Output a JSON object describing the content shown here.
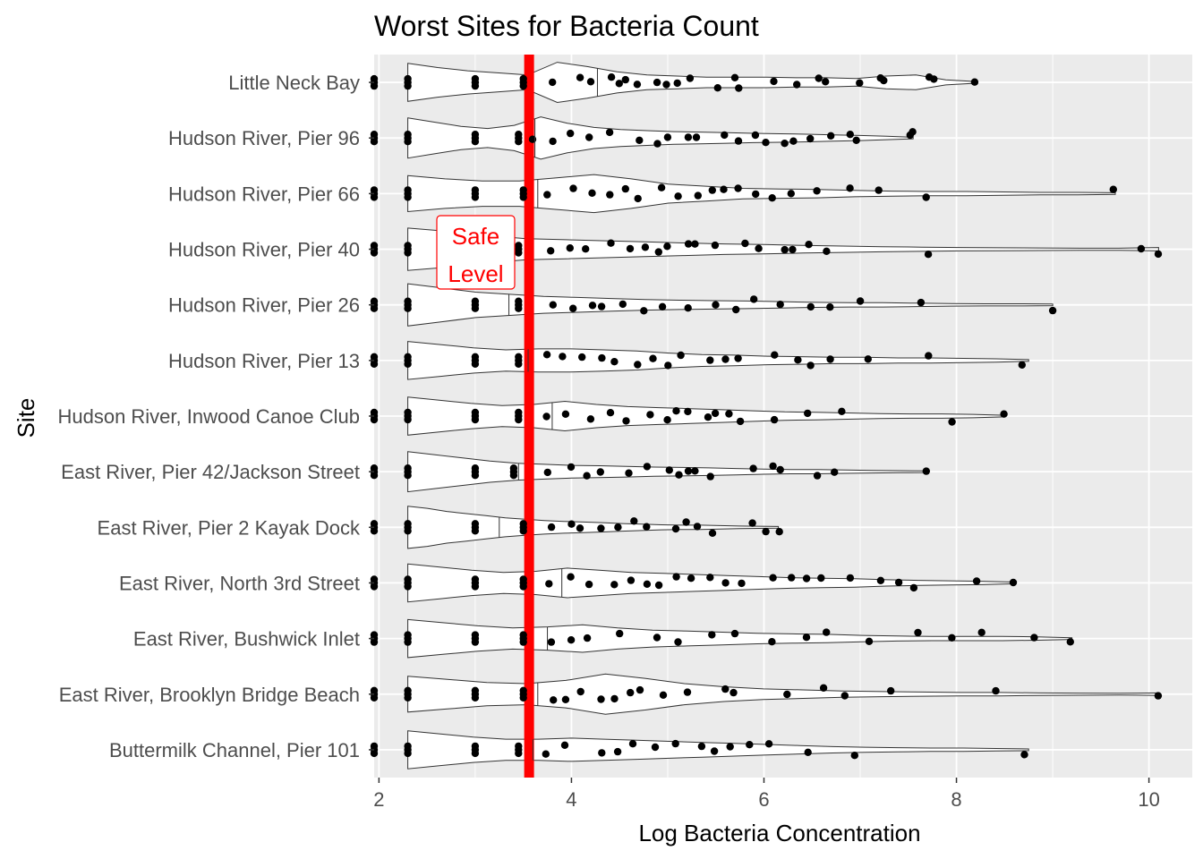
{
  "chart_data": {
    "type": "violin",
    "title": "Worst Sites for Bacteria Count",
    "xlabel": "Log Bacteria Concentration",
    "ylabel": "Site",
    "xlim": [
      1.95,
      10.45
    ],
    "x_ticks": [
      2,
      4,
      6,
      8,
      10
    ],
    "grid": true,
    "background": "#ebebeb",
    "reference_line": {
      "x": 3.56,
      "color": "#ff0000",
      "label_lines": [
        "Safe",
        "Level"
      ]
    },
    "sites": [
      {
        "name": "Little Neck Bay",
        "min": 2.3,
        "max": 8.2,
        "median": 4.27,
        "widths": [
          0.9,
          0.7,
          0.55,
          0.45,
          0.35,
          0.95,
          0.75,
          0.5,
          0.35,
          0.3,
          0.25,
          0.25,
          0.25,
          0.22,
          0.22,
          0.18,
          0.3,
          0.35,
          0.12,
          0.04
        ],
        "points": [
          1.95,
          2.3,
          3.0,
          3.5,
          3.8,
          4.1,
          4.2,
          4.4,
          4.5,
          4.55,
          4.7,
          4.9,
          5.0,
          5.1,
          5.25,
          5.5,
          5.7,
          5.75,
          6.1,
          6.35,
          6.55,
          6.65,
          7.0,
          7.2,
          7.25,
          7.7,
          7.75,
          8.2
        ]
      },
      {
        "name": "Hudson River, Pier 96",
        "min": 2.3,
        "max": 7.55,
        "median": 3.62,
        "widths": [
          0.95,
          0.75,
          0.55,
          0.45,
          0.6,
          1.0,
          0.7,
          0.5,
          0.4,
          0.35,
          0.3,
          0.28,
          0.25,
          0.22,
          0.2,
          0.18,
          0.15,
          0.12,
          0.08,
          0.04
        ],
        "points": [
          1.95,
          2.3,
          3.0,
          3.45,
          3.6,
          3.8,
          4.0,
          4.2,
          4.4,
          4.7,
          4.9,
          5.0,
          5.2,
          5.3,
          5.6,
          5.75,
          5.9,
          6.0,
          6.2,
          6.3,
          6.5,
          6.7,
          6.9,
          6.95,
          7.5,
          7.55
        ]
      },
      {
        "name": "Hudson River, Pier 66",
        "min": 2.3,
        "max": 9.65,
        "median": 3.65,
        "widths": [
          0.85,
          0.7,
          0.6,
          0.6,
          0.75,
          0.9,
          0.7,
          0.45,
          0.35,
          0.25,
          0.22,
          0.2,
          0.15,
          0.12,
          0.1,
          0.1,
          0.08,
          0.06,
          0.06,
          0.04
        ],
        "points": [
          1.95,
          2.3,
          3.0,
          3.5,
          3.75,
          4.0,
          4.2,
          4.4,
          4.55,
          4.7,
          4.95,
          5.1,
          5.3,
          5.45,
          5.6,
          5.75,
          5.9,
          6.1,
          6.3,
          6.55,
          6.9,
          7.2,
          7.7,
          9.65
        ]
      },
      {
        "name": "Hudson River, Pier 40",
        "min": 2.3,
        "max": 10.1,
        "median": 3.3,
        "widths": [
          1.0,
          0.85,
          0.65,
          0.5,
          0.45,
          0.4,
          0.35,
          0.3,
          0.25,
          0.22,
          0.18,
          0.15,
          0.12,
          0.1,
          0.08,
          0.07,
          0.06,
          0.05,
          0.05,
          0.08
        ],
        "points": [
          1.95,
          2.3,
          3.0,
          3.45,
          3.8,
          4.0,
          4.15,
          4.4,
          4.6,
          4.75,
          4.9,
          5.0,
          5.2,
          5.3,
          5.5,
          5.8,
          5.95,
          6.2,
          6.3,
          6.45,
          6.65,
          7.7,
          9.9,
          10.1
        ]
      },
      {
        "name": "Hudson River, Pier 26",
        "min": 2.3,
        "max": 9.0,
        "median": 3.35,
        "widths": [
          1.0,
          0.8,
          0.6,
          0.5,
          0.4,
          0.35,
          0.3,
          0.25,
          0.22,
          0.2,
          0.18,
          0.15,
          0.12,
          0.1,
          0.1,
          0.08,
          0.06,
          0.05,
          0.05,
          0.04
        ],
        "points": [
          1.95,
          2.3,
          3.0,
          3.45,
          3.8,
          4.0,
          4.2,
          4.3,
          4.55,
          4.75,
          4.95,
          5.2,
          5.5,
          5.7,
          5.9,
          6.15,
          6.5,
          6.7,
          7.0,
          7.65,
          9.0
        ]
      },
      {
        "name": "Hudson River, Pier 13",
        "min": 2.3,
        "max": 8.75,
        "median": 3.55,
        "widths": [
          0.9,
          0.75,
          0.6,
          0.5,
          0.55,
          0.55,
          0.5,
          0.45,
          0.35,
          0.28,
          0.25,
          0.2,
          0.18,
          0.15,
          0.15,
          0.12,
          0.12,
          0.1,
          0.08,
          0.04
        ],
        "points": [
          1.95,
          2.3,
          3.0,
          3.45,
          3.75,
          3.9,
          4.1,
          4.3,
          4.45,
          4.7,
          4.85,
          5.0,
          5.15,
          5.45,
          5.6,
          5.75,
          6.1,
          6.35,
          6.5,
          6.7,
          7.1,
          7.7,
          8.7
        ]
      },
      {
        "name": "Hudson River, Inwood Canoe Club",
        "min": 2.3,
        "max": 8.5,
        "median": 3.8,
        "widths": [
          0.9,
          0.75,
          0.6,
          0.5,
          0.55,
          0.7,
          0.55,
          0.45,
          0.4,
          0.35,
          0.3,
          0.25,
          0.2,
          0.18,
          0.15,
          0.12,
          0.1,
          0.1,
          0.08,
          0.04
        ],
        "points": [
          1.95,
          2.3,
          3.0,
          3.45,
          3.75,
          3.95,
          4.2,
          4.4,
          4.55,
          4.8,
          5.0,
          5.1,
          5.2,
          5.4,
          5.5,
          5.65,
          5.75,
          6.1,
          6.45,
          6.8,
          7.95,
          8.5
        ]
      },
      {
        "name": "East River, Pier 42/Jackson Street",
        "min": 2.3,
        "max": 7.7,
        "median": 3.45,
        "widths": [
          0.95,
          0.8,
          0.65,
          0.5,
          0.4,
          0.35,
          0.3,
          0.28,
          0.25,
          0.22,
          0.2,
          0.18,
          0.15,
          0.12,
          0.1,
          0.1,
          0.08,
          0.06,
          0.05,
          0.04
        ],
        "points": [
          1.95,
          2.3,
          3.0,
          3.4,
          3.75,
          4.0,
          4.15,
          4.3,
          4.6,
          4.8,
          5.0,
          5.1,
          5.2,
          5.3,
          5.45,
          5.9,
          6.1,
          6.15,
          6.55,
          6.75,
          7.7
        ]
      },
      {
        "name": "East River, Pier 2 Kayak Dock",
        "min": 2.3,
        "max": 6.15,
        "median": 3.25,
        "widths": [
          1.0,
          0.9,
          0.75,
          0.65,
          0.55,
          0.45,
          0.38,
          0.32,
          0.28,
          0.25,
          0.22,
          0.18,
          0.15,
          0.12,
          0.1,
          0.1,
          0.08,
          0.06,
          0.05,
          0.04
        ],
        "points": [
          1.95,
          2.3,
          3.0,
          3.5,
          3.8,
          4.0,
          4.1,
          4.3,
          4.5,
          4.65,
          4.8,
          5.1,
          5.2,
          5.3,
          5.45,
          5.9,
          6.0,
          6.15
        ]
      },
      {
        "name": "East River, North 3rd Street",
        "min": 2.3,
        "max": 8.6,
        "median": 3.9,
        "widths": [
          0.9,
          0.75,
          0.6,
          0.5,
          0.55,
          0.7,
          0.6,
          0.5,
          0.45,
          0.4,
          0.35,
          0.3,
          0.25,
          0.22,
          0.2,
          0.15,
          0.12,
          0.1,
          0.08,
          0.04
        ],
        "points": [
          1.95,
          2.3,
          3.0,
          3.5,
          3.75,
          4.0,
          4.2,
          4.45,
          4.6,
          4.8,
          4.9,
          5.1,
          5.25,
          5.45,
          5.6,
          5.75,
          6.1,
          6.3,
          6.45,
          6.6,
          6.9,
          7.2,
          7.4,
          7.55,
          8.2,
          8.6
        ]
      },
      {
        "name": "East River, Bushwick Inlet",
        "min": 2.3,
        "max": 9.2,
        "median": 3.75,
        "widths": [
          0.9,
          0.75,
          0.6,
          0.5,
          0.55,
          0.65,
          0.5,
          0.4,
          0.35,
          0.3,
          0.25,
          0.22,
          0.2,
          0.15,
          0.12,
          0.1,
          0.1,
          0.1,
          0.08,
          0.04
        ],
        "points": [
          1.95,
          2.3,
          3.0,
          3.5,
          3.8,
          4.0,
          4.15,
          4.5,
          4.9,
          5.1,
          5.45,
          5.7,
          6.1,
          6.45,
          6.65,
          7.1,
          7.6,
          7.95,
          8.25,
          8.8,
          9.2
        ]
      },
      {
        "name": "East River, Brooklyn Bridge Beach",
        "min": 2.3,
        "max": 10.1,
        "median": 3.65,
        "widths": [
          0.85,
          0.7,
          0.55,
          0.5,
          0.65,
          0.95,
          0.75,
          0.5,
          0.35,
          0.25,
          0.2,
          0.15,
          0.12,
          0.1,
          0.08,
          0.08,
          0.06,
          0.05,
          0.04,
          0.06
        ],
        "points": [
          1.95,
          2.3,
          3.0,
          3.5,
          3.8,
          3.95,
          4.1,
          4.3,
          4.45,
          4.6,
          4.7,
          4.95,
          5.2,
          5.6,
          5.7,
          6.25,
          6.6,
          6.85,
          7.3,
          8.4,
          10.1
        ]
      },
      {
        "name": "Buttermilk Channel, Pier 101",
        "min": 2.3,
        "max": 8.75,
        "median": 3.6,
        "widths": [
          0.9,
          0.75,
          0.6,
          0.5,
          0.5,
          0.55,
          0.5,
          0.45,
          0.4,
          0.35,
          0.3,
          0.25,
          0.2,
          0.15,
          0.12,
          0.1,
          0.08,
          0.08,
          0.06,
          0.04
        ],
        "points": [
          1.95,
          2.3,
          3.0,
          3.45,
          3.75,
          3.95,
          4.3,
          4.5,
          4.65,
          4.85,
          5.1,
          5.35,
          5.5,
          5.65,
          5.85,
          6.05,
          6.45,
          6.95,
          8.7
        ]
      }
    ]
  }
}
